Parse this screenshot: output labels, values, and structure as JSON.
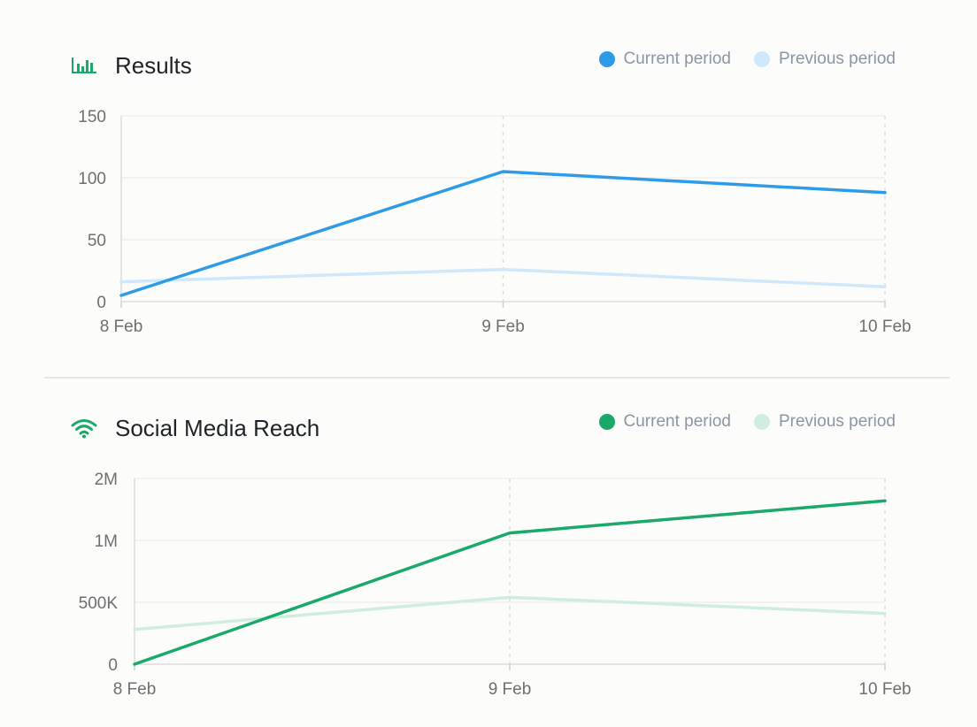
{
  "chart_data": [
    {
      "type": "line",
      "title": "Results",
      "icon": "bar-chart-icon",
      "accent": "#2e9be9",
      "previous_color": "#cfe8fb",
      "categories": [
        "8 Feb",
        "9 Feb",
        "10 Feb"
      ],
      "series": [
        {
          "name": "Current period",
          "values": [
            5,
            105,
            88
          ]
        },
        {
          "name": "Previous period",
          "values": [
            16,
            26,
            12
          ]
        }
      ],
      "y_ticks": [
        "0",
        "50",
        "100",
        "150"
      ],
      "y_tick_values": [
        0,
        50,
        100,
        150
      ],
      "ylim": [
        0,
        150
      ],
      "legend": "top-right",
      "grid": true
    },
    {
      "type": "line",
      "title": "Social Media Reach",
      "icon": "wifi-icon",
      "accent": "#1aa86b",
      "previous_color": "#cfeedd",
      "categories": [
        "8 Feb",
        "9 Feb",
        "10 Feb"
      ],
      "series": [
        {
          "name": "Current period",
          "values": [
            0,
            1060000,
            1320000
          ]
        },
        {
          "name": "Previous period",
          "values": [
            280000,
            540000,
            410000
          ]
        }
      ],
      "y_ticks": [
        "0",
        "500K",
        "1M",
        "2M"
      ],
      "y_tick_values": [
        0,
        500000,
        1000000,
        1500000
      ],
      "ylim": [
        0,
        1500000
      ],
      "legend": "top-right",
      "grid": true
    }
  ]
}
